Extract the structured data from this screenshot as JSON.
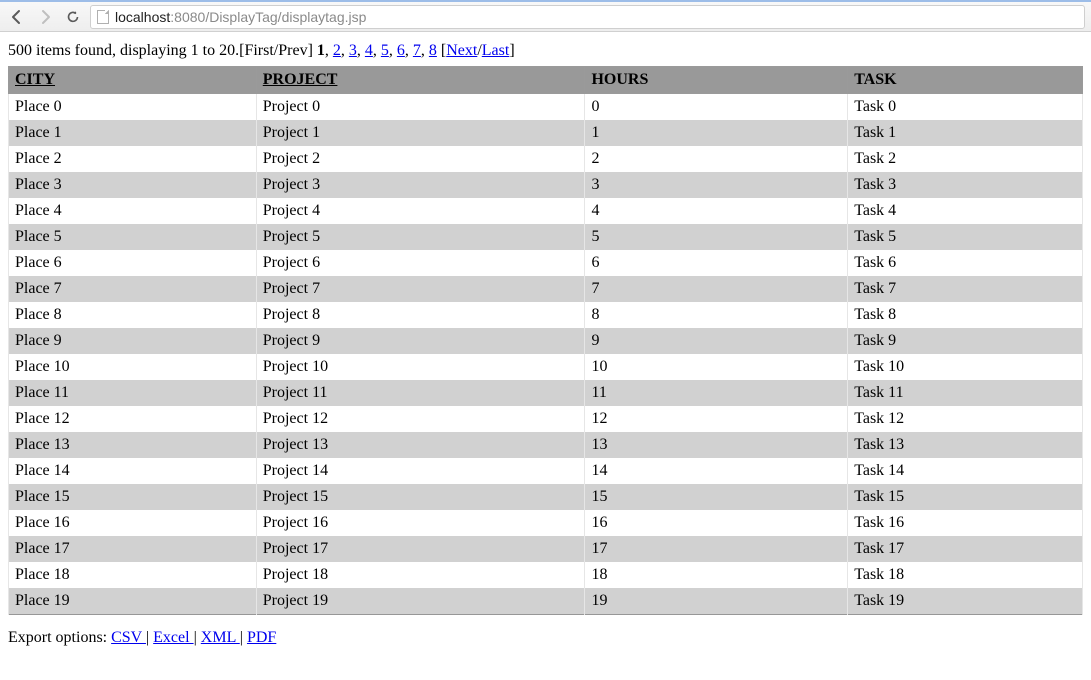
{
  "chrome": {
    "url_host": "localhost",
    "url_port": ":8080",
    "url_path": "/DisplayTag/displaytag.jsp"
  },
  "banner": {
    "prefix": "500 items found, displaying 1 to 20.",
    "first": "First",
    "prev": "Prev",
    "current_page": "1",
    "sep": ", ",
    "pages": [
      "2",
      "3",
      "4",
      "5",
      "6",
      "7",
      "8"
    ],
    "next": "Next",
    "last": "Last"
  },
  "table": {
    "columns": [
      {
        "key": "city",
        "label": "CITY",
        "sortable": true
      },
      {
        "key": "project",
        "label": "PROJECT",
        "sortable": true
      },
      {
        "key": "hours",
        "label": "HOURS",
        "sortable": false
      },
      {
        "key": "task",
        "label": "TASK",
        "sortable": false
      }
    ],
    "rows": [
      {
        "city": "Place 0",
        "project": "Project 0",
        "hours": "0",
        "task": "Task 0"
      },
      {
        "city": "Place 1",
        "project": "Project 1",
        "hours": "1",
        "task": "Task 1"
      },
      {
        "city": "Place 2",
        "project": "Project 2",
        "hours": "2",
        "task": "Task 2"
      },
      {
        "city": "Place 3",
        "project": "Project 3",
        "hours": "3",
        "task": "Task 3"
      },
      {
        "city": "Place 4",
        "project": "Project 4",
        "hours": "4",
        "task": "Task 4"
      },
      {
        "city": "Place 5",
        "project": "Project 5",
        "hours": "5",
        "task": "Task 5"
      },
      {
        "city": "Place 6",
        "project": "Project 6",
        "hours": "6",
        "task": "Task 6"
      },
      {
        "city": "Place 7",
        "project": "Project 7",
        "hours": "7",
        "task": "Task 7"
      },
      {
        "city": "Place 8",
        "project": "Project 8",
        "hours": "8",
        "task": "Task 8"
      },
      {
        "city": "Place 9",
        "project": "Project 9",
        "hours": "9",
        "task": "Task 9"
      },
      {
        "city": "Place 10",
        "project": "Project 10",
        "hours": "10",
        "task": "Task 10"
      },
      {
        "city": "Place 11",
        "project": "Project 11",
        "hours": "11",
        "task": "Task 11"
      },
      {
        "city": "Place 12",
        "project": "Project 12",
        "hours": "12",
        "task": "Task 12"
      },
      {
        "city": "Place 13",
        "project": "Project 13",
        "hours": "13",
        "task": "Task 13"
      },
      {
        "city": "Place 14",
        "project": "Project 14",
        "hours": "14",
        "task": "Task 14"
      },
      {
        "city": "Place 15",
        "project": "Project 15",
        "hours": "15",
        "task": "Task 15"
      },
      {
        "city": "Place 16",
        "project": "Project 16",
        "hours": "16",
        "task": "Task 16"
      },
      {
        "city": "Place 17",
        "project": "Project 17",
        "hours": "17",
        "task": "Task 17"
      },
      {
        "city": "Place 18",
        "project": "Project 18",
        "hours": "18",
        "task": "Task 18"
      },
      {
        "city": "Place 19",
        "project": "Project 19",
        "hours": "19",
        "task": "Task 19"
      }
    ],
    "row_colors": {
      "odd": "#ffffff",
      "even": "#d1d1d1"
    },
    "header_bg": "#999999"
  },
  "export": {
    "label": "Export options: ",
    "links": [
      "CSV ",
      "Excel ",
      "XML ",
      "PDF"
    ],
    "sep": "| "
  }
}
